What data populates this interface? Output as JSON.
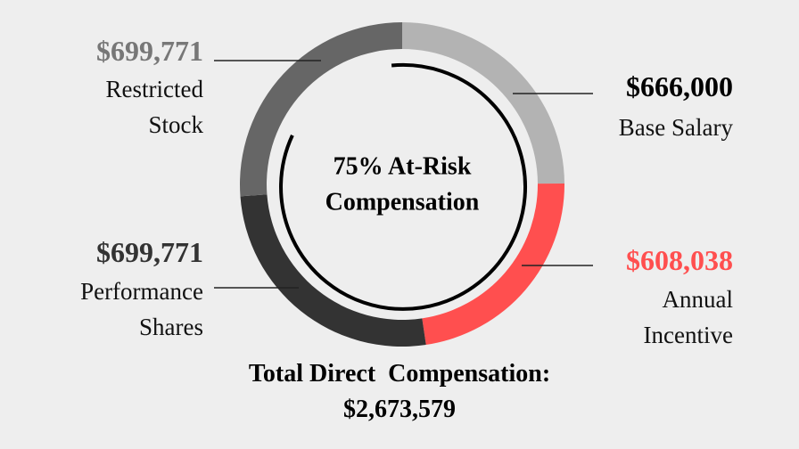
{
  "chart_data": {
    "type": "pie",
    "donut": true,
    "categories": [
      "Base Salary",
      "Annual Incentive",
      "Performance Shares",
      "Restricted Stock"
    ],
    "values": [
      666000,
      608038,
      699771,
      699771
    ],
    "value_labels": [
      "$666,000",
      "$608,038",
      "$699,771",
      "$699,771"
    ],
    "colors": [
      "#b3b3b3",
      "#ff4f4f",
      "#333333",
      "#666666"
    ],
    "label_colors": [
      "#000000",
      "#ff4f4f",
      "#333333",
      "#777777"
    ],
    "annotations": [
      "75% At-Risk",
      "Compensation"
    ],
    "footer": [
      "Total Direct  Compensation:",
      "$2,673,579"
    ]
  }
}
